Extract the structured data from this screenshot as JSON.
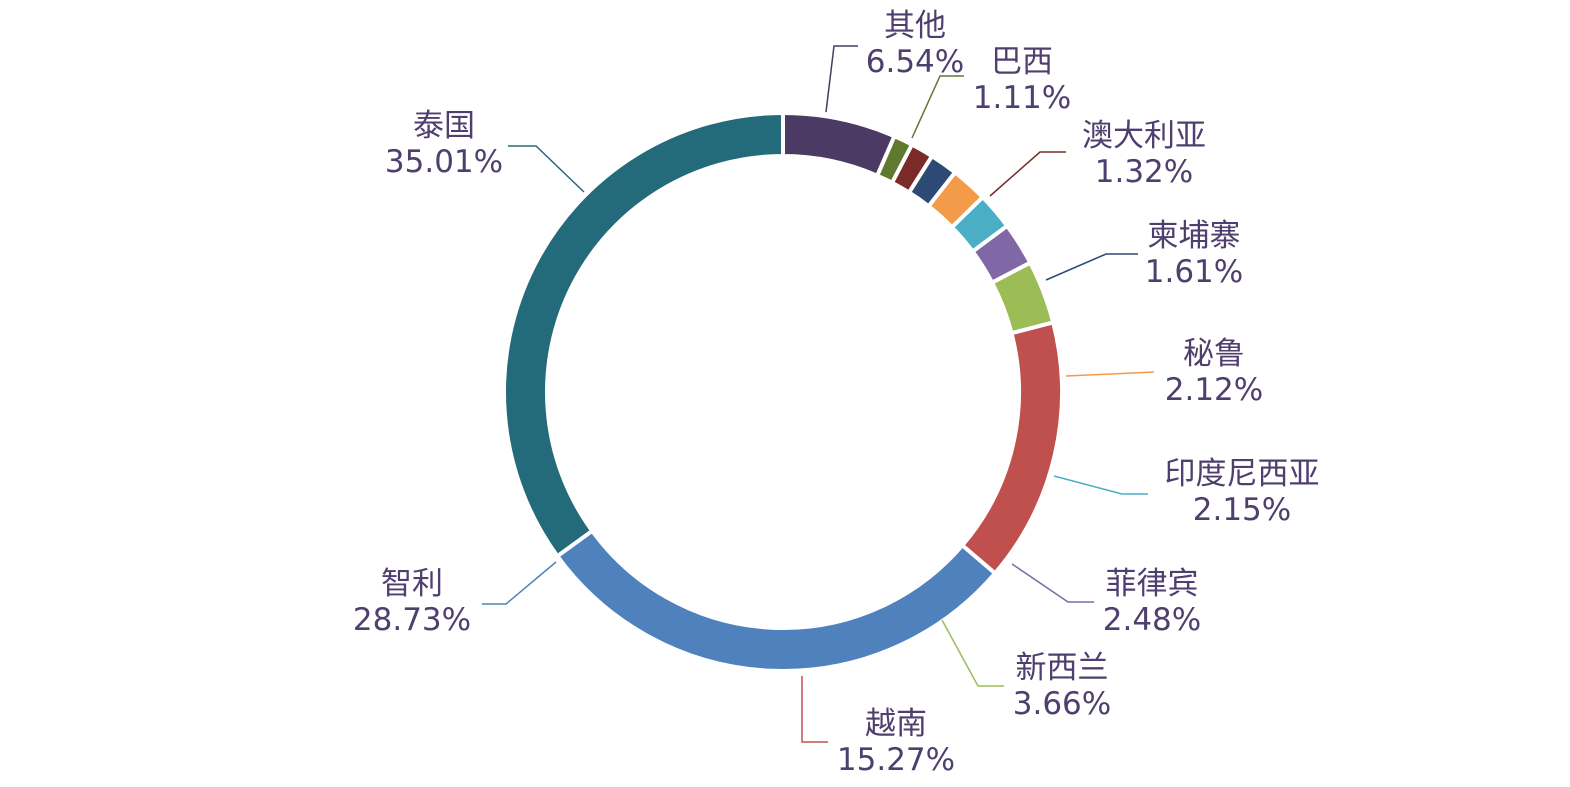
{
  "chart_data": {
    "type": "pie",
    "donut": true,
    "categories": [
      "其他",
      "巴西",
      "澳大利亚",
      "柬埔寨",
      "秘鲁",
      "印度尼西亚",
      "菲律宾",
      "新西兰",
      "越南",
      "智利",
      "泰国"
    ],
    "values": [
      6.54,
      1.11,
      1.32,
      1.61,
      2.12,
      2.15,
      2.48,
      3.66,
      15.27,
      28.73,
      35.01
    ],
    "labels": [
      "6.54%",
      "1.11%",
      "1.32%",
      "1.61%",
      "2.12%",
      "2.15%",
      "2.48%",
      "3.66%",
      "15.27%",
      "28.73%",
      "35.01%"
    ],
    "colors": [
      "#4b3a63",
      "#5f7a2e",
      "#7a2a28",
      "#2c4a73",
      "#f39b48",
      "#4aaec5",
      "#8068a6",
      "#9cbd55",
      "#c0504d",
      "#4f81bd",
      "#236a7a"
    ],
    "label_color": "#4e3f6e",
    "title": "",
    "legend": "none"
  }
}
